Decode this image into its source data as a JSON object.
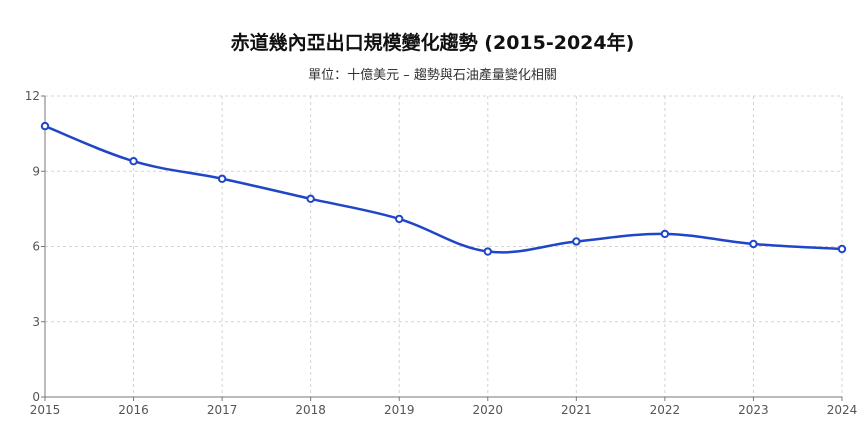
{
  "chart_data": {
    "type": "line",
    "title": "赤道幾內亞出口規模變化趨勢 (2015-2024年)",
    "subtitle": "單位：十億美元 – 趨勢與石油產量變化相關",
    "xlabel": "",
    "ylabel": "",
    "x": [
      "2015",
      "2016",
      "2017",
      "2018",
      "2019",
      "2020",
      "2021",
      "2022",
      "2023",
      "2024"
    ],
    "series": [
      {
        "values": [
          10.8,
          9.4,
          8.7,
          7.9,
          7.1,
          5.8,
          6.2,
          6.5,
          6.1,
          5.9
        ]
      }
    ],
    "ylim": [
      0,
      12
    ],
    "yticks": [
      "0",
      "3",
      "6",
      "9",
      "12"
    ],
    "grid": true,
    "line_color": "#1f45c8"
  }
}
